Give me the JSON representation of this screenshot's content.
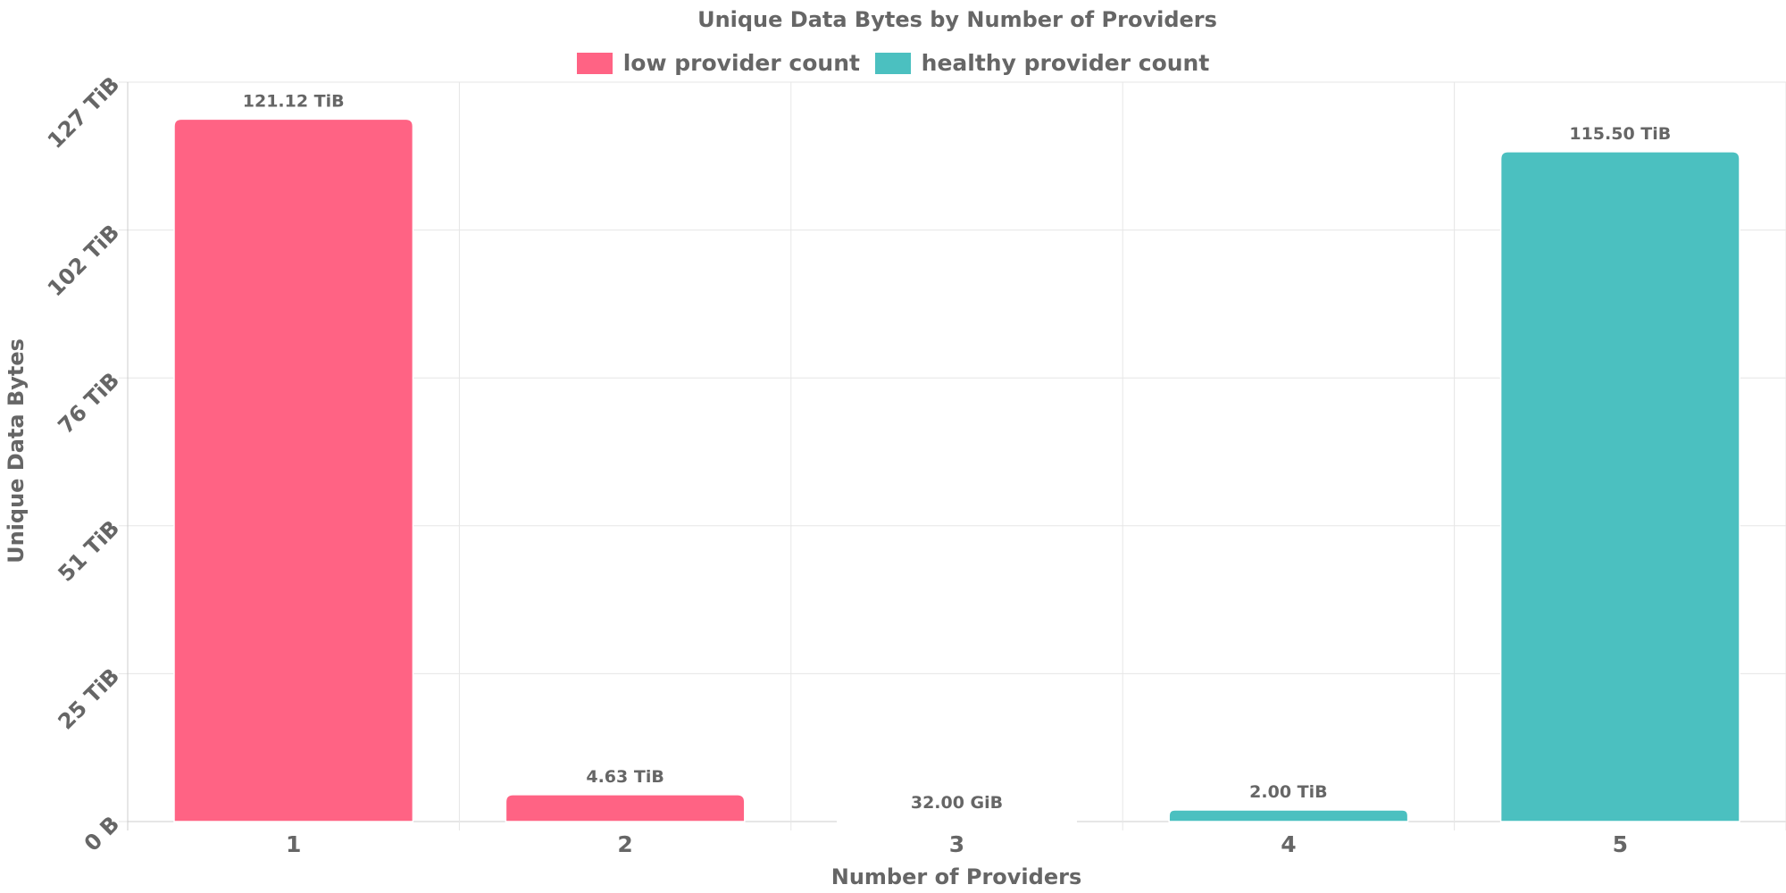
{
  "chart_data": {
    "type": "bar",
    "title": "Unique Data Bytes by Number of Providers",
    "xlabel": "Number of Providers",
    "ylabel": "Unique Data Bytes",
    "categories": [
      "1",
      "2",
      "3",
      "4",
      "5"
    ],
    "values": [
      121.12,
      4.63,
      0.03125,
      2.0,
      115.5
    ],
    "value_unit": "TiB",
    "data_labels": [
      "121.12 TiB",
      "4.63 TiB",
      "32.00 GiB",
      "2.00 TiB",
      "115.50 TiB"
    ],
    "bar_series": [
      "low provider count",
      "low provider count",
      "low provider count",
      "healthy provider count",
      "healthy provider count"
    ],
    "series": [
      {
        "name": "low provider count",
        "color": "#ff6384"
      },
      {
        "name": "healthy provider count",
        "color": "#4bc0c0"
      }
    ],
    "ylim": [
      0,
      127.5
    ],
    "yticks": [
      0,
      25.5,
      51,
      76.5,
      102,
      127.5
    ],
    "ytick_labels": [
      "0 B",
      "25 TiB",
      "51 TiB",
      "76 TiB",
      "102 TiB",
      "127 TiB"
    ],
    "grid": true,
    "legend_position": "top"
  }
}
